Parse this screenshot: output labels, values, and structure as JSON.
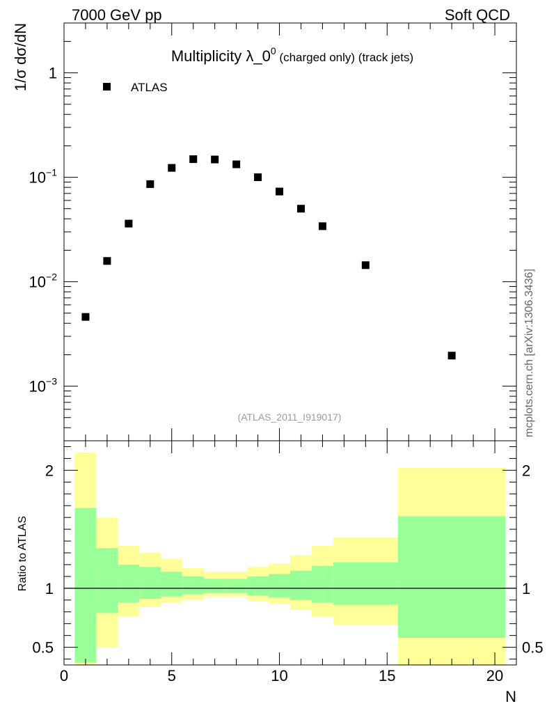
{
  "header": {
    "left": "7000 GeV pp",
    "right": "Soft QCD"
  },
  "side_label": "mcplots.cern.ch [arXiv:1306.3436]",
  "chart_data": {
    "type": "scatter",
    "title_main": "Multiplicity λ_0",
    "title_sup": "0",
    "title_sub": " (charged only) (track jets)",
    "ylabel": "1/σ dσ/dN",
    "xlabel": "N",
    "yscale": "log",
    "ylim": [
      0.0003,
      3
    ],
    "xlim": [
      0,
      21
    ],
    "legend": [
      {
        "name": "ATLAS",
        "marker": "square"
      }
    ],
    "legend_position": "top-left",
    "watermark": "(ATLAS_2011_I919017)",
    "series": [
      {
        "name": "ATLAS",
        "x": [
          1,
          2,
          3,
          4,
          5,
          6,
          7,
          8,
          9,
          10,
          11,
          12,
          14,
          18
        ],
        "y": [
          0.0046,
          0.0158,
          0.036,
          0.086,
          0.123,
          0.149,
          0.148,
          0.133,
          0.1,
          0.073,
          0.05,
          0.034,
          0.0144,
          0.00196
        ]
      }
    ],
    "y_ticks": [
      {
        "value": 1,
        "base": "1",
        "exp": ""
      },
      {
        "value": 0.1,
        "base": "10",
        "exp": "−1"
      },
      {
        "value": 0.01,
        "base": "10",
        "exp": "−2"
      },
      {
        "value": 0.001,
        "base": "10",
        "exp": "−3"
      }
    ],
    "x_ticks": [
      0,
      5,
      10,
      15,
      20
    ],
    "ratio": {
      "ylabel": "Ratio to ATLAS",
      "ylim": [
        0.35,
        2.25
      ],
      "ticks": [
        0.5,
        1,
        2
      ],
      "reference": 1,
      "bands": [
        {
          "xlo": 0.5,
          "xhi": 1.5,
          "stat_lo": 0.37,
          "stat_hi": 1.68,
          "tot_lo": 0.33,
          "tot_hi": 2.15
        },
        {
          "xlo": 1.5,
          "xhi": 2.5,
          "stat_lo": 0.79,
          "stat_hi": 1.34,
          "tot_lo": 0.5,
          "tot_hi": 1.6
        },
        {
          "xlo": 2.5,
          "xhi": 3.5,
          "stat_lo": 0.88,
          "stat_hi": 1.2,
          "tot_lo": 0.76,
          "tot_hi": 1.36
        },
        {
          "xlo": 3.5,
          "xhi": 4.5,
          "stat_lo": 0.91,
          "stat_hi": 1.18,
          "tot_lo": 0.84,
          "tot_hi": 1.3
        },
        {
          "xlo": 4.5,
          "xhi": 5.5,
          "stat_lo": 0.93,
          "stat_hi": 1.14,
          "tot_lo": 0.88,
          "tot_hi": 1.25
        },
        {
          "xlo": 5.5,
          "xhi": 6.5,
          "stat_lo": 0.95,
          "stat_hi": 1.1,
          "tot_lo": 0.9,
          "tot_hi": 1.17
        },
        {
          "xlo": 6.5,
          "xhi": 7.5,
          "stat_lo": 0.96,
          "stat_hi": 1.08,
          "tot_lo": 0.93,
          "tot_hi": 1.14
        },
        {
          "xlo": 7.5,
          "xhi": 8.5,
          "stat_lo": 0.96,
          "stat_hi": 1.08,
          "tot_lo": 0.93,
          "tot_hi": 1.14
        },
        {
          "xlo": 8.5,
          "xhi": 9.5,
          "stat_lo": 0.94,
          "stat_hi": 1.1,
          "tot_lo": 0.89,
          "tot_hi": 1.18
        },
        {
          "xlo": 9.5,
          "xhi": 10.5,
          "stat_lo": 0.92,
          "stat_hi": 1.12,
          "tot_lo": 0.87,
          "tot_hi": 1.21
        },
        {
          "xlo": 10.5,
          "xhi": 11.5,
          "stat_lo": 0.9,
          "stat_hi": 1.15,
          "tot_lo": 0.82,
          "tot_hi": 1.28
        },
        {
          "xlo": 11.5,
          "xhi": 12.5,
          "stat_lo": 0.88,
          "stat_hi": 1.19,
          "tot_lo": 0.76,
          "tot_hi": 1.36
        },
        {
          "xlo": 12.5,
          "xhi": 15.5,
          "stat_lo": 0.86,
          "stat_hi": 1.22,
          "tot_lo": 0.69,
          "tot_hi": 1.43
        },
        {
          "xlo": 15.5,
          "xhi": 20.5,
          "stat_lo": 0.58,
          "stat_hi": 1.61,
          "tot_lo": 0.3,
          "tot_hi": 2.02
        }
      ]
    }
  },
  "colors": {
    "stat_band": "#99ff99",
    "total_band": "#ffff99",
    "marker": "#000000",
    "watermark": "#9b9b9b"
  }
}
